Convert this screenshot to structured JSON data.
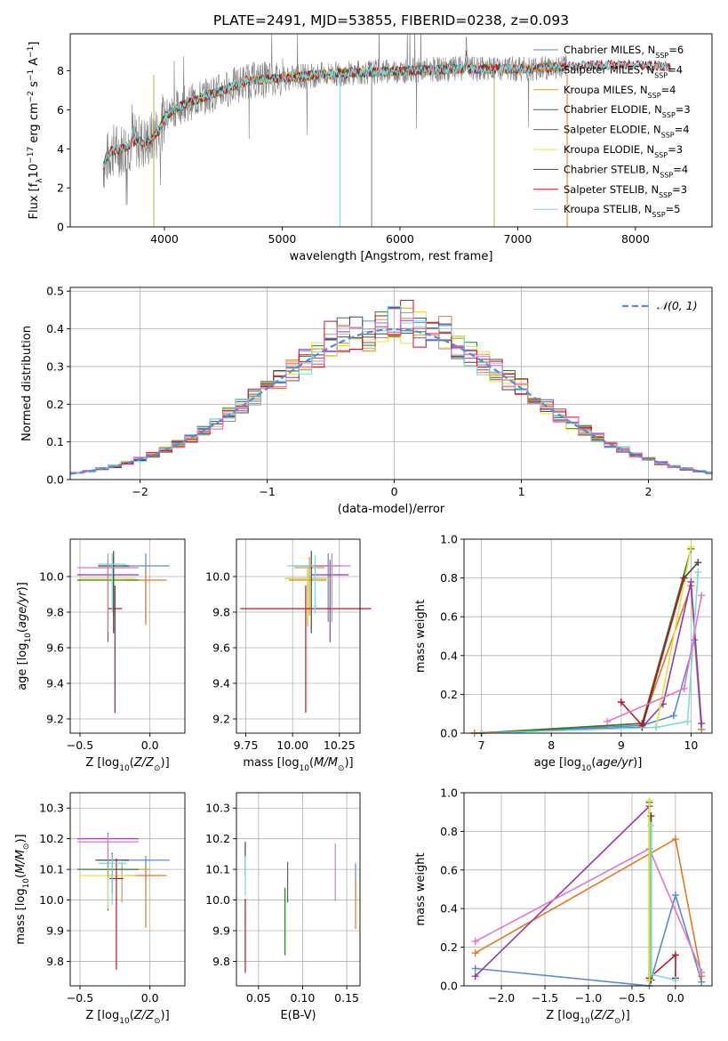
{
  "figure": {
    "title": "PLATE=2491, MJD=53855, FIBERID=0238, z=0.093"
  },
  "colors": {
    "Chabrier MILES": "#5b8bd6",
    "Salpeter MILES": "#e07b20",
    "Kroupa MILES": "#c8a23a",
    "Chabrier ELODIE": "#2f7d33",
    "Salpeter ELODIE": "#8e3bb0",
    "Kroupa ELODIE": "#e3e33c",
    "Chabrier STELIB": "#444444",
    "Salpeter STELIB": "#c0151e",
    "Kroupa STELIB": "#7fd8dc",
    "pink": "#e377c2",
    "olive": "#bcbd22",
    "data": "#808080",
    "grid": "#b0b0b0"
  },
  "chart_data": [
    {
      "id": "spectrum",
      "type": "line",
      "xlabel": "wavelength [Angstrom, rest frame]",
      "ylabel": "Flux [f_λ 10^-17 erg cm^-2 s^-1 A^-1]",
      "xlim": [
        3200,
        8650
      ],
      "ylim": [
        0,
        9.9
      ],
      "xticks": [
        4000,
        5000,
        6000,
        7000,
        8000
      ],
      "yticks": [
        0,
        2,
        4,
        6,
        8
      ],
      "grid": false,
      "legend_position": "right",
      "legend": [
        {
          "name": "Chabrier MILES, N",
          "sub": "SSP",
          "tail": "=6"
        },
        {
          "name": "Salpeter MILES, N",
          "sub": "SSP",
          "tail": "=4"
        },
        {
          "name": "Kroupa MILES, N",
          "sub": "SSP",
          "tail": "=4"
        },
        {
          "name": "Chabrier ELODIE, N",
          "sub": "SSP",
          "tail": "=3"
        },
        {
          "name": "Salpeter ELODIE, N",
          "sub": "SSP",
          "tail": "=4"
        },
        {
          "name": "Kroupa ELODIE, N",
          "sub": "SSP",
          "tail": "=3"
        },
        {
          "name": "Chabrier STELIB, N",
          "sub": "SSP",
          "tail": "=4"
        },
        {
          "name": "Salpeter STELIB, N",
          "sub": "SSP",
          "tail": "=3"
        },
        {
          "name": "Kroupa STELIB, N",
          "sub": "SSP",
          "tail": "=5"
        }
      ],
      "continuum_knots": [
        [
          3480,
          3.1
        ],
        [
          3550,
          3.9
        ],
        [
          3650,
          4.0
        ],
        [
          3750,
          4.4
        ],
        [
          3850,
          4.3
        ],
        [
          3950,
          4.9
        ],
        [
          4000,
          5.6
        ],
        [
          4100,
          6.1
        ],
        [
          4300,
          6.6
        ],
        [
          4500,
          7.0
        ],
        [
          4700,
          7.5
        ],
        [
          5000,
          7.6
        ],
        [
          5300,
          7.8
        ],
        [
          5600,
          7.9
        ],
        [
          6000,
          8.0
        ],
        [
          6500,
          8.1
        ],
        [
          7000,
          8.1
        ],
        [
          7400,
          8.2
        ],
        [
          7700,
          8.3
        ],
        [
          8000,
          8.3
        ],
        [
          8300,
          8.2
        ]
      ],
      "emission_lines": [
        [
          6563,
          1.2
        ],
        [
          5007,
          0.6
        ],
        [
          3727,
          0.8
        ]
      ]
    },
    {
      "id": "residuals",
      "type": "line",
      "xlabel": "(data-model)/error",
      "ylabel": "Normed distribution",
      "xlim": [
        -2.55,
        2.5
      ],
      "ylim": [
        0,
        0.51
      ],
      "xticks": [
        -2,
        -1,
        0,
        1,
        2
      ],
      "yticks": [
        0.0,
        0.1,
        0.2,
        0.3,
        0.4,
        0.5
      ],
      "grid": true,
      "legend_position": "top-right",
      "legend_label": "N(0,1)",
      "bin_width": 0.1,
      "bin_start": -2.55,
      "bin_count": 51
    },
    {
      "id": "age_vs_Z",
      "type": "scatter",
      "xlabel": "Z [log10(Z/Z⊙)]",
      "ylabel": "age  [log10(age/yr)]",
      "xlim": [
        -0.57,
        0.25
      ],
      "ylim": [
        9.12,
        10.21
      ],
      "xticks": [
        -0.5,
        0.0
      ],
      "yticks": [
        9.2,
        9.4,
        9.6,
        9.8,
        10.0
      ],
      "grid": true,
      "points": [
        {
          "model": "Chabrier MILES",
          "z": -0.03,
          "age": 10.06,
          "zerr": 0.17,
          "ageerr": 0.35
        },
        {
          "model": "Salpeter MILES",
          "z": -0.03,
          "age": 9.98,
          "zerr": 0.15,
          "ageerr": 0.28
        },
        {
          "model": "Kroupa MILES",
          "z": -0.26,
          "age": 10.05,
          "zerr": 0.12,
          "ageerr": 0.3
        },
        {
          "model": "Chabrier ELODIE",
          "z": -0.3,
          "age": 9.98,
          "zerr": 0.22,
          "ageerr": 0.32
        },
        {
          "model": "Salpeter ELODIE",
          "z": -0.3,
          "age": 10.01,
          "zerr": 0.22,
          "ageerr": 0.42
        },
        {
          "model": "Kroupa ELODIE",
          "z": -0.3,
          "age": 9.99,
          "zerr": 0.2,
          "ageerr": 0.3
        },
        {
          "model": "Chabrier STELIB",
          "z": -0.26,
          "age": 10.06,
          "zerr": 0.11,
          "ageerr": 0.42
        },
        {
          "model": "Salpeter STELIB",
          "z": -0.25,
          "age": 9.82,
          "zerr": 0.05,
          "ageerr": 0.65
        },
        {
          "model": "Kroupa STELIB",
          "z": -0.27,
          "age": 10.07,
          "zerr": 0.1,
          "ageerr": 0.3
        },
        {
          "model": "pink",
          "z": -0.3,
          "age": 10.05,
          "zerr": 0.22,
          "ageerr": 0.4
        }
      ]
    },
    {
      "id": "age_vs_mass",
      "type": "scatter",
      "xlabel": "mass [log10(M/M⊙)]",
      "ylabel": "",
      "xlim": [
        9.7,
        10.36
      ],
      "ylim": [
        9.12,
        10.21
      ],
      "xticks": [
        9.75,
        10.0,
        10.25
      ],
      "yticks": [
        9.2,
        9.4,
        9.6,
        9.8,
        10.0
      ],
      "grid": true,
      "points": [
        {
          "model": "Chabrier MILES",
          "m": 10.19,
          "age": 10.06,
          "merr": 0.07,
          "ageerr": 0.35
        },
        {
          "model": "Salpeter MILES",
          "m": 10.08,
          "age": 9.98,
          "merr": 0.1,
          "ageerr": 0.28
        },
        {
          "model": "Kroupa MILES",
          "m": 10.09,
          "age": 10.05,
          "merr": 0.08,
          "ageerr": 0.3
        },
        {
          "model": "Chabrier ELODIE",
          "m": 10.08,
          "age": 9.99,
          "merr": 0.12,
          "ageerr": 0.3
        },
        {
          "model": "Salpeter ELODIE",
          "m": 10.2,
          "age": 10.01,
          "merr": 0.1,
          "ageerr": 0.42
        },
        {
          "model": "Kroupa ELODIE",
          "m": 10.08,
          "age": 9.99,
          "merr": 0.12,
          "ageerr": 0.3
        },
        {
          "model": "Chabrier STELIB",
          "m": 10.1,
          "age": 10.06,
          "merr": 0.1,
          "ageerr": 0.42
        },
        {
          "model": "Salpeter STELIB",
          "m": 10.07,
          "age": 9.82,
          "merr": 0.35,
          "ageerr": 0.65
        },
        {
          "model": "Kroupa STELIB",
          "m": 10.12,
          "age": 10.06,
          "merr": 0.15,
          "ageerr": 0.3
        },
        {
          "model": "pink",
          "m": 10.21,
          "age": 10.06,
          "merr": 0.1,
          "ageerr": 0.35
        }
      ]
    },
    {
      "id": "weight_vs_age",
      "type": "line",
      "xlabel": "age  [log10(age/yr)]",
      "ylabel": "mass weight",
      "xlim": [
        6.75,
        10.3
      ],
      "ylim": [
        0,
        1.0
      ],
      "xticks": [
        7,
        8,
        9,
        10
      ],
      "yticks": [
        0.0,
        0.2,
        0.4,
        0.6,
        0.8,
        1.0
      ],
      "grid": true,
      "series": [
        {
          "model": "Chabrier MILES",
          "x": [
            6.9,
            9.3,
            9.75,
            10.05,
            10.15
          ],
          "y": [
            0.0,
            0.04,
            0.09,
            0.48,
            0.02
          ]
        },
        {
          "model": "Salpeter MILES",
          "x": [
            6.9,
            9.3,
            10.0,
            10.15
          ],
          "y": [
            0.0,
            0.05,
            0.76,
            0.02
          ]
        },
        {
          "model": "Chabrier ELODIE",
          "x": [
            7.0,
            9.3,
            10.0
          ],
          "y": [
            0.0,
            0.05,
            0.95
          ]
        },
        {
          "model": "Salpeter ELODIE",
          "x": [
            7.0,
            9.3,
            9.6,
            10.0,
            10.15
          ],
          "y": [
            0.0,
            0.03,
            0.15,
            0.78,
            0.05
          ]
        },
        {
          "model": "Kroupa ELODIE",
          "x": [
            7.0,
            9.5,
            10.0
          ],
          "y": [
            0.0,
            0.03,
            0.96
          ]
        },
        {
          "model": "Chabrier STELIB",
          "x": [
            7.0,
            9.3,
            9.9,
            10.1
          ],
          "y": [
            0.0,
            0.03,
            0.8,
            0.88
          ]
        },
        {
          "model": "Salpeter STELIB",
          "x": [
            9.0,
            9.3,
            9.9
          ],
          "y": [
            0.16,
            0.04,
            0.8
          ]
        },
        {
          "model": "Kroupa STELIB",
          "x": [
            7.0,
            9.5,
            9.95,
            10.1
          ],
          "y": [
            0.0,
            0.03,
            0.06,
            0.83
          ]
        },
        {
          "model": "pink",
          "x": [
            8.8,
            9.9,
            10.15
          ],
          "y": [
            0.06,
            0.23,
            0.71
          ]
        }
      ]
    },
    {
      "id": "mass_vs_Z",
      "type": "scatter",
      "xlabel": "Z [log10(Z/Z⊙)]",
      "ylabel": "mass [log10(M/M⊙)]",
      "xlim": [
        -0.57,
        0.25
      ],
      "ylim": [
        9.72,
        10.35
      ],
      "xticks": [
        -0.5,
        0.0
      ],
      "yticks": [
        9.8,
        9.9,
        10.0,
        10.1,
        10.2,
        10.3
      ],
      "grid": true,
      "points": [
        {
          "model": "Chabrier MILES",
          "z": -0.03,
          "m": 10.13,
          "zerr": 0.17,
          "merr": 0.07
        },
        {
          "model": "Salpeter MILES",
          "z": -0.03,
          "m": 10.08,
          "zerr": 0.15,
          "merr": 0.19
        },
        {
          "model": "Kroupa MILES",
          "z": -0.2,
          "m": 10.1,
          "zerr": 0.2,
          "merr": 0.12
        },
        {
          "model": "Chabrier ELODIE",
          "z": -0.3,
          "m": 10.1,
          "zerr": 0.22,
          "merr": 0.15
        },
        {
          "model": "Salpeter ELODIE",
          "z": -0.3,
          "m": 10.2,
          "zerr": 0.22,
          "merr": 0.1
        },
        {
          "model": "Kroupa ELODIE",
          "z": -0.3,
          "m": 10.08,
          "zerr": 0.2,
          "merr": 0.12
        },
        {
          "model": "Chabrier STELIB",
          "z": -0.27,
          "m": 10.13,
          "zerr": 0.12,
          "merr": 0.12
        },
        {
          "model": "Salpeter STELIB",
          "z": -0.24,
          "m": 10.07,
          "zerr": 0.05,
          "merr": 0.33
        },
        {
          "model": "Kroupa STELIB",
          "z": -0.27,
          "m": 10.12,
          "zerr": 0.1,
          "merr": 0.15
        },
        {
          "model": "pink",
          "z": -0.3,
          "m": 10.19,
          "zerr": 0.22,
          "merr": 0.13
        }
      ]
    },
    {
      "id": "mass_vs_ebv",
      "type": "scatter",
      "xlabel": "E(B-V)",
      "ylabel": "",
      "xlim": [
        0.025,
        0.165
      ],
      "ylim": [
        9.72,
        10.35
      ],
      "xticks": [
        0.05,
        0.1,
        0.15
      ],
      "yticks": [
        9.8,
        9.9,
        10.0,
        10.1,
        10.2,
        10.3
      ],
      "grid": true,
      "points": [
        {
          "model": "Chabrier MILES",
          "e": 0.16,
          "m": 10.1,
          "merr": 0.1
        },
        {
          "model": "Salpeter MILES",
          "e": 0.16,
          "m": 10.04,
          "merr": 0.15
        },
        {
          "model": "Chabrier STELIB",
          "e": 0.035,
          "m": 10.17,
          "merr": 0.1
        },
        {
          "model": "Salpeter STELIB",
          "e": 0.035,
          "m": 9.96,
          "merr": 0.22
        },
        {
          "model": "Kroupa STELIB",
          "e": 0.035,
          "m": 10.12,
          "merr": 0.12
        },
        {
          "model": "Salpeter ELODIE",
          "e": 0.083,
          "m": 10.1,
          "merr": 0.12
        },
        {
          "model": "Kroupa ELODIE",
          "e": 0.08,
          "m": 10.0,
          "merr": 0.15
        },
        {
          "model": "Chabrier ELODIE",
          "e": 0.08,
          "m": 10.0,
          "merr": 0.2
        },
        {
          "model": "pink",
          "e": 0.137,
          "m": 10.15,
          "merr": 0.17
        }
      ]
    },
    {
      "id": "weight_vs_Z",
      "type": "line",
      "xlabel": "Z [log10(Z/Z⊙)]",
      "ylabel": "mass weight",
      "xlim": [
        -2.43,
        0.42
      ],
      "ylim": [
        0,
        1.0
      ],
      "xticks": [
        -2.0,
        -1.5,
        -1.0,
        -0.5,
        0.0
      ],
      "yticks": [
        0.0,
        0.2,
        0.4,
        0.6,
        0.8,
        1.0
      ],
      "grid": true,
      "series": [
        {
          "model": "Chabrier MILES",
          "x": [
            -2.3,
            -0.3,
            0.0,
            0.3
          ],
          "y": [
            0.09,
            0.0,
            0.47,
            0.02
          ]
        },
        {
          "model": "Salpeter MILES",
          "x": [
            -2.3,
            0.0,
            0.3
          ],
          "y": [
            0.17,
            0.76,
            0.05
          ]
        },
        {
          "model": "Salpeter ELODIE",
          "x": [
            -2.3,
            -0.3,
            -0.3
          ],
          "y": [
            0.05,
            0.93,
            0.03
          ]
        },
        {
          "model": "pink",
          "x": [
            -2.3,
            -0.3,
            0.3
          ],
          "y": [
            0.23,
            0.71,
            0.07
          ]
        },
        {
          "model": "Chabrier STELIB",
          "x": [
            -0.28,
            -0.28
          ],
          "y": [
            0.03,
            0.88
          ]
        },
        {
          "model": "Chabrier ELODIE",
          "x": [
            -0.3,
            -0.3
          ],
          "y": [
            0.04,
            0.95
          ]
        },
        {
          "model": "Salpeter STELIB",
          "x": [
            -0.3,
            0.0,
            0.0
          ],
          "y": [
            0.04,
            0.16,
            0.04
          ]
        },
        {
          "model": "Kroupa STELIB",
          "x": [
            -0.28,
            -0.28,
            0.0
          ],
          "y": [
            0.83,
            0.06,
            0.03
          ]
        },
        {
          "model": "Kroupa ELODIE",
          "x": [
            -0.3,
            -0.3
          ],
          "y": [
            0.96,
            0.03
          ]
        }
      ]
    }
  ]
}
